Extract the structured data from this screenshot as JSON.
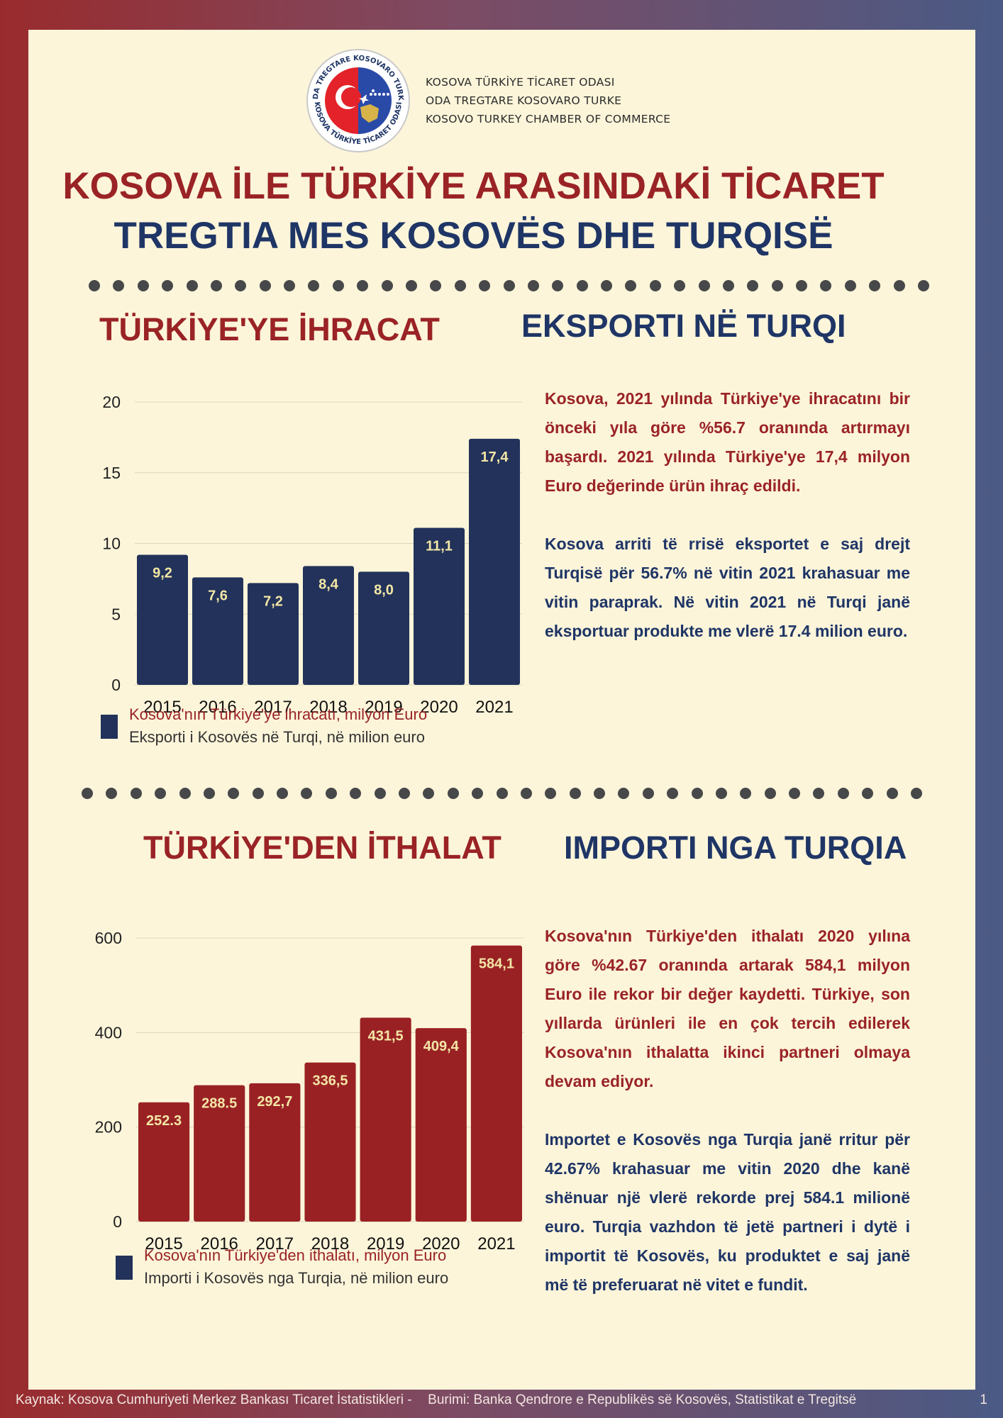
{
  "header": {
    "logo_text": [
      "ODA TREGTARE KOSOVARO TURKE",
      "KOSOVA TÜRKİYE TİCARET ODASI"
    ],
    "org_lines": [
      "KOSOVA TÜRKİYE TİCARET ODASI",
      "ODA TREGTARE KOSOVARO TURKE",
      "KOSOVO TURKEY CHAMBER OF COMMERCE"
    ],
    "title_tr": "KOSOVA İLE TÜRKİYE ARASINDAKİ TİCARET",
    "title_sq": "TREGTIA MES KOSOVËS DHE TURQISË"
  },
  "colors": {
    "red": "#9a2326",
    "navy": "#1f3566",
    "bar_navy": "#22325a",
    "bar_red": "#992124",
    "label": "#f3e6a6"
  },
  "export_section": {
    "heading_tr": "TÜRKİYE'YE İHRACAT",
    "heading_sq": "EKSPORTI NË TURQI",
    "para_tr": "Kosova, 2021 yılında Türkiye'ye ihracatını bir önceki yıla göre %56.7 oranında artırmayı başardı. 2021 yılında Türkiye'ye 17,4 milyon Euro değerinde ürün ihraç edildi.",
    "para_sq": "Kosova arriti të rrisë eksportet e saj drejt Turqisë për 56.7% në vitin 2021 krahasuar me vitin paraprak. Në vitin 2021 në Turqi janë eksportuar produkte me vlerë 17.4 milion euro.",
    "legend_tr": "Kosova'nın Türkiye'ye ihracatı, milyon Euro",
    "legend_sq": "Eksporti i Kosovës në Turqi, në milion euro"
  },
  "import_section": {
    "heading_tr": "TÜRKİYE'DEN İTHALAT",
    "heading_sq": "IMPORTI NGA TURQIA",
    "para_tr": "Kosova'nın Türkiye'den ithalatı 2020 yılına göre %42.67 oranında artarak 584,1 milyon Euro ile rekor bir değer kaydetti. Türkiye, son yıllarda ürünleri ile en çok tercih edilerek Kosova'nın ithalatta ikinci partneri olmaya devam ediyor.",
    "para_sq": "Importet e Kosovës nga Turqia janë rritur për 42.67% krahasuar me vitin 2020 dhe kanë shënuar një vlerë rekorde prej 584.1 milionë euro. Turqia vazhdon të jetë partneri i dytë i importit të Kosovës, ku produktet e saj janë më të preferuarat në vitet e fundit.",
    "legend_tr": "Kosova'nın Türkiye'den ithalatı, milyon Euro",
    "legend_sq": "Importi i Kosovës nga Turqia, në milion euro"
  },
  "chart_data": [
    {
      "type": "bar",
      "categories": [
        "2015",
        "2016",
        "2017",
        "2018",
        "2019",
        "2020",
        "2021"
      ],
      "values": [
        9.2,
        7.6,
        7.2,
        8.4,
        8.0,
        11.1,
        17.4
      ],
      "data_labels": [
        "9,2",
        "7,6",
        "7,2",
        "8,4",
        "8,0",
        "11,1",
        "17,4"
      ],
      "ylim": [
        0,
        20
      ],
      "yticks": [
        0,
        5,
        10,
        15,
        20
      ],
      "grid": true,
      "legend_position": "bottom-left",
      "bar_color": "#22325a"
    },
    {
      "type": "bar",
      "categories": [
        "2015",
        "2016",
        "2017",
        "2018",
        "2019",
        "2020",
        "2021"
      ],
      "values": [
        252.3,
        288.5,
        292.7,
        336.5,
        431.5,
        409.4,
        584.1
      ],
      "data_labels": [
        "252.3",
        "288.5",
        "292,7",
        "336,5",
        "431,5",
        "409,4",
        "584,1"
      ],
      "ylim": [
        0,
        600
      ],
      "yticks": [
        0,
        200,
        400,
        600
      ],
      "grid": true,
      "legend_position": "bottom-left",
      "bar_color": "#992124"
    }
  ],
  "footer": {
    "source_tr": "Kaynak: Kosova Cumhuriyeti Merkez Bankası Ticaret İstatistikleri -",
    "source_sq": "Burimi: Banka Qendrore e Republikës së Kosovës, Statistikat e Tregitsë",
    "page_number": "1"
  }
}
